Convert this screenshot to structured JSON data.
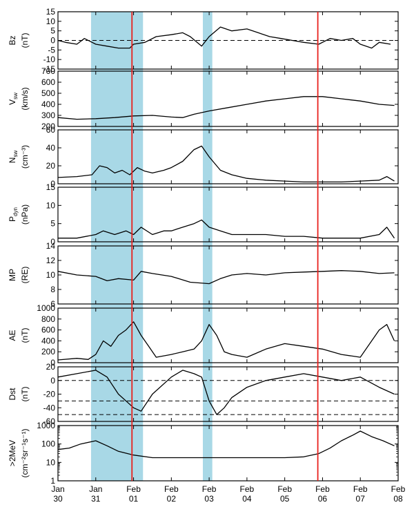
{
  "colors": {
    "shade": "#a8d8e6",
    "event_line": "#e8201c",
    "trace": "#000000",
    "frame": "#000000"
  },
  "chart_data": {
    "type": "line",
    "time_axis": {
      "ticks": [
        {
          "day": 0,
          "label1": "Jan",
          "label2": "30"
        },
        {
          "day": 1,
          "label1": "Jan",
          "label2": "31"
        },
        {
          "day": 2,
          "label1": "Feb",
          "label2": "01"
        },
        {
          "day": 3,
          "label1": "Feb",
          "label2": "02"
        },
        {
          "day": 4,
          "label1": "Feb",
          "label2": "03"
        },
        {
          "day": 5,
          "label1": "Feb",
          "label2": "04"
        },
        {
          "day": 6,
          "label1": "Feb",
          "label2": "05"
        },
        {
          "day": 7,
          "label1": "Feb",
          "label2": "06"
        },
        {
          "day": 8,
          "label1": "Feb",
          "label2": "07"
        },
        {
          "day": 9,
          "label1": "Feb",
          "label2": "08"
        }
      ],
      "start": "Jan 30",
      "end": "Feb 08"
    },
    "shaded_intervals": [
      {
        "start": "Jan 30 21:00",
        "end": "Feb 01 06:00"
      },
      {
        "start": "Feb 02 20:00",
        "end": "Feb 03 02:00"
      }
    ],
    "event_lines": [
      "Jan 31 23:00",
      "Feb 05 21:00"
    ],
    "panels": [
      {
        "id": "bz",
        "ylabel": "Bz",
        "unit": "(nT)",
        "scale": "linear",
        "ylim": [
          -15,
          15
        ],
        "yticks": [
          {
            "v": -15,
            "t": "-15"
          },
          {
            "v": -10,
            "t": "-10"
          },
          {
            "v": -5,
            "t": "-5"
          },
          {
            "v": 0,
            "t": "0"
          },
          {
            "v": 5,
            "t": "5"
          },
          {
            "v": 10,
            "t": "10"
          },
          {
            "v": 15,
            "t": "15"
          }
        ],
        "dashed": [
          0
        ],
        "points": [
          [
            0.0,
            0
          ],
          [
            0.2,
            -1
          ],
          [
            0.5,
            -2
          ],
          [
            0.7,
            1
          ],
          [
            1.0,
            -2
          ],
          [
            1.3,
            -3
          ],
          [
            1.6,
            -4
          ],
          [
            1.9,
            -4
          ],
          [
            2.0,
            -2
          ],
          [
            2.3,
            -1
          ],
          [
            2.6,
            2
          ],
          [
            3.0,
            3
          ],
          [
            3.3,
            4
          ],
          [
            3.5,
            2
          ],
          [
            3.8,
            -3
          ],
          [
            4.0,
            2
          ],
          [
            4.3,
            7
          ],
          [
            4.6,
            5
          ],
          [
            5.0,
            6
          ],
          [
            5.3,
            4
          ],
          [
            5.6,
            2
          ],
          [
            5.9,
            1
          ],
          [
            6.2,
            0
          ],
          [
            6.5,
            -1
          ],
          [
            6.9,
            -2
          ],
          [
            7.2,
            1
          ],
          [
            7.5,
            0
          ],
          [
            7.8,
            1
          ],
          [
            8.0,
            -2
          ],
          [
            8.3,
            -4
          ],
          [
            8.5,
            -1
          ],
          [
            8.8,
            -2
          ]
        ]
      },
      {
        "id": "vsw",
        "ylabel": "V",
        "ylabel_sub": "sw",
        "unit": "(km/s)",
        "scale": "linear",
        "ylim": [
          200,
          700
        ],
        "yticks": [
          {
            "v": 200,
            "t": "200"
          },
          {
            "v": 300,
            "t": "300"
          },
          {
            "v": 400,
            "t": "400"
          },
          {
            "v": 500,
            "t": "500"
          },
          {
            "v": 600,
            "t": "600"
          },
          {
            "v": 700,
            "t": "700"
          }
        ],
        "dashed": [],
        "points": [
          [
            0.0,
            280
          ],
          [
            0.5,
            265
          ],
          [
            1.0,
            270
          ],
          [
            1.5,
            280
          ],
          [
            2.0,
            295
          ],
          [
            2.5,
            300
          ],
          [
            3.0,
            285
          ],
          [
            3.3,
            280
          ],
          [
            3.6,
            310
          ],
          [
            4.0,
            340
          ],
          [
            4.5,
            370
          ],
          [
            5.0,
            400
          ],
          [
            5.5,
            430
          ],
          [
            6.0,
            450
          ],
          [
            6.5,
            470
          ],
          [
            7.0,
            470
          ],
          [
            7.5,
            450
          ],
          [
            8.0,
            430
          ],
          [
            8.5,
            400
          ],
          [
            8.9,
            390
          ]
        ]
      },
      {
        "id": "nsw",
        "ylabel": "N",
        "ylabel_sub": "sw",
        "unit": "(cm⁻³)",
        "scale": "linear",
        "ylim": [
          0,
          60
        ],
        "yticks": [
          {
            "v": 0,
            "t": "0"
          },
          {
            "v": 20,
            "t": "20"
          },
          {
            "v": 40,
            "t": "40"
          },
          {
            "v": 60,
            "t": "60"
          }
        ],
        "dashed": [],
        "points": [
          [
            0.0,
            7
          ],
          [
            0.5,
            8
          ],
          [
            0.9,
            10
          ],
          [
            1.1,
            20
          ],
          [
            1.3,
            18
          ],
          [
            1.5,
            12
          ],
          [
            1.7,
            15
          ],
          [
            1.9,
            10
          ],
          [
            2.1,
            18
          ],
          [
            2.3,
            14
          ],
          [
            2.5,
            12
          ],
          [
            2.8,
            15
          ],
          [
            3.0,
            18
          ],
          [
            3.3,
            25
          ],
          [
            3.6,
            38
          ],
          [
            3.8,
            42
          ],
          [
            4.0,
            30
          ],
          [
            4.3,
            15
          ],
          [
            4.6,
            10
          ],
          [
            5.0,
            6
          ],
          [
            5.5,
            4
          ],
          [
            6.0,
            3
          ],
          [
            6.5,
            2
          ],
          [
            7.0,
            2
          ],
          [
            7.5,
            2
          ],
          [
            8.0,
            3
          ],
          [
            8.5,
            4
          ],
          [
            8.7,
            8
          ],
          [
            8.9,
            3
          ]
        ]
      },
      {
        "id": "pdyn",
        "ylabel": "P",
        "ylabel_sub": "dyn",
        "unit": "(nPa)",
        "scale": "linear",
        "ylim": [
          0,
          15
        ],
        "yticks": [
          {
            "v": 0,
            "t": "0"
          },
          {
            "v": 5,
            "t": "5"
          },
          {
            "v": 10,
            "t": "10"
          },
          {
            "v": 15,
            "t": "15"
          }
        ],
        "dashed": [],
        "points": [
          [
            0.0,
            1
          ],
          [
            0.5,
            1
          ],
          [
            1.0,
            2
          ],
          [
            1.2,
            3
          ],
          [
            1.5,
            2
          ],
          [
            1.8,
            3
          ],
          [
            2.0,
            2
          ],
          [
            2.2,
            4
          ],
          [
            2.5,
            2
          ],
          [
            2.8,
            3
          ],
          [
            3.0,
            3
          ],
          [
            3.3,
            4
          ],
          [
            3.6,
            5
          ],
          [
            3.8,
            6
          ],
          [
            4.0,
            4
          ],
          [
            4.3,
            3
          ],
          [
            4.6,
            2
          ],
          [
            5.0,
            2
          ],
          [
            5.5,
            2
          ],
          [
            6.0,
            1.5
          ],
          [
            6.5,
            1.5
          ],
          [
            7.0,
            1
          ],
          [
            7.5,
            1
          ],
          [
            8.0,
            1
          ],
          [
            8.5,
            2
          ],
          [
            8.7,
            4
          ],
          [
            8.9,
            1
          ]
        ]
      },
      {
        "id": "mp",
        "ylabel": "MP",
        "unit": "(RE)",
        "scale": "linear",
        "ylim": [
          6,
          14
        ],
        "yticks": [
          {
            "v": 6,
            "t": "6"
          },
          {
            "v": 8,
            "t": "8"
          },
          {
            "v": 10,
            "t": "10"
          },
          {
            "v": 12,
            "t": "12"
          },
          {
            "v": 14,
            "t": "14"
          }
        ],
        "dashed": [],
        "points": [
          [
            0.0,
            10.5
          ],
          [
            0.5,
            10
          ],
          [
            1.0,
            9.8
          ],
          [
            1.3,
            9.2
          ],
          [
            1.6,
            9.5
          ],
          [
            2.0,
            9.3
          ],
          [
            2.2,
            10.5
          ],
          [
            2.5,
            10.2
          ],
          [
            3.0,
            9.8
          ],
          [
            3.5,
            9.0
          ],
          [
            4.0,
            8.8
          ],
          [
            4.3,
            9.5
          ],
          [
            4.6,
            10.0
          ],
          [
            5.0,
            10.2
          ],
          [
            5.5,
            10.0
          ],
          [
            6.0,
            10.3
          ],
          [
            6.5,
            10.4
          ],
          [
            7.0,
            10.5
          ],
          [
            7.5,
            10.6
          ],
          [
            8.0,
            10.5
          ],
          [
            8.5,
            10.2
          ],
          [
            8.9,
            10.3
          ]
        ]
      },
      {
        "id": "ae",
        "ylabel": "AE",
        "unit": "(nT)",
        "scale": "linear",
        "ylim": [
          0,
          1000
        ],
        "yticks": [
          {
            "v": 0,
            "t": "0"
          },
          {
            "v": 200,
            "t": "200"
          },
          {
            "v": 400,
            "t": "400"
          },
          {
            "v": 600,
            "t": "600"
          },
          {
            "v": 800,
            "t": "800"
          },
          {
            "v": 1000,
            "t": "1000"
          }
        ],
        "dashed": [],
        "points": [
          [
            0.0,
            50
          ],
          [
            0.5,
            80
          ],
          [
            0.8,
            60
          ],
          [
            1.0,
            150
          ],
          [
            1.2,
            400
          ],
          [
            1.4,
            300
          ],
          [
            1.6,
            500
          ],
          [
            1.8,
            600
          ],
          [
            2.0,
            750
          ],
          [
            2.2,
            500
          ],
          [
            2.4,
            300
          ],
          [
            2.6,
            100
          ],
          [
            3.0,
            150
          ],
          [
            3.3,
            200
          ],
          [
            3.6,
            250
          ],
          [
            3.8,
            400
          ],
          [
            4.0,
            700
          ],
          [
            4.2,
            500
          ],
          [
            4.4,
            200
          ],
          [
            4.6,
            150
          ],
          [
            5.0,
            100
          ],
          [
            5.5,
            250
          ],
          [
            6.0,
            350
          ],
          [
            6.5,
            300
          ],
          [
            7.0,
            250
          ],
          [
            7.5,
            150
          ],
          [
            8.0,
            100
          ],
          [
            8.5,
            600
          ],
          [
            8.7,
            700
          ],
          [
            8.9,
            400
          ]
        ]
      },
      {
        "id": "dst",
        "ylabel": "Dst",
        "unit": "(nT)",
        "scale": "linear",
        "ylim": [
          -60,
          20
        ],
        "yticks": [
          {
            "v": -60,
            "t": "-60"
          },
          {
            "v": -40,
            "t": "-40"
          },
          {
            "v": -20,
            "t": "-20"
          },
          {
            "v": 0,
            "t": "0"
          },
          {
            "v": 20,
            "t": "20"
          }
        ],
        "dashed": [
          0,
          -30,
          -50
        ],
        "points": [
          [
            0.0,
            5
          ],
          [
            0.5,
            10
          ],
          [
            1.0,
            15
          ],
          [
            1.3,
            5
          ],
          [
            1.6,
            -20
          ],
          [
            1.9,
            -35
          ],
          [
            2.0,
            -40
          ],
          [
            2.2,
            -45
          ],
          [
            2.5,
            -20
          ],
          [
            3.0,
            5
          ],
          [
            3.3,
            15
          ],
          [
            3.6,
            10
          ],
          [
            3.8,
            5
          ],
          [
            4.0,
            -30
          ],
          [
            4.2,
            -50
          ],
          [
            4.4,
            -40
          ],
          [
            4.6,
            -25
          ],
          [
            5.0,
            -10
          ],
          [
            5.5,
            0
          ],
          [
            6.0,
            5
          ],
          [
            6.5,
            10
          ],
          [
            7.0,
            5
          ],
          [
            7.5,
            0
          ],
          [
            8.0,
            5
          ],
          [
            8.5,
            -10
          ],
          [
            8.9,
            -20
          ]
        ]
      },
      {
        "id": "e2",
        "ylabel": ">2MeV",
        "unit": "(cm⁻²sr⁻¹s⁻¹)",
        "scale": "log",
        "ylim": [
          1,
          1000
        ],
        "yticks": [
          {
            "v": 1,
            "t": "1"
          },
          {
            "v": 10,
            "t": "10"
          },
          {
            "v": 100,
            "t": "100"
          },
          {
            "v": 1000,
            "t": "1000"
          }
        ],
        "dashed": [],
        "points": [
          [
            0.0,
            50
          ],
          [
            0.3,
            60
          ],
          [
            0.6,
            100
          ],
          [
            1.0,
            150
          ],
          [
            1.3,
            80
          ],
          [
            1.6,
            40
          ],
          [
            2.0,
            25
          ],
          [
            2.5,
            18
          ],
          [
            3.0,
            18
          ],
          [
            3.5,
            18
          ],
          [
            4.0,
            18
          ],
          [
            4.5,
            18
          ],
          [
            5.0,
            18
          ],
          [
            5.5,
            18
          ],
          [
            6.0,
            18
          ],
          [
            6.5,
            20
          ],
          [
            6.9,
            30
          ],
          [
            7.2,
            60
          ],
          [
            7.5,
            150
          ],
          [
            7.8,
            300
          ],
          [
            8.0,
            500
          ],
          [
            8.3,
            250
          ],
          [
            8.6,
            150
          ],
          [
            8.9,
            80
          ]
        ]
      }
    ]
  }
}
